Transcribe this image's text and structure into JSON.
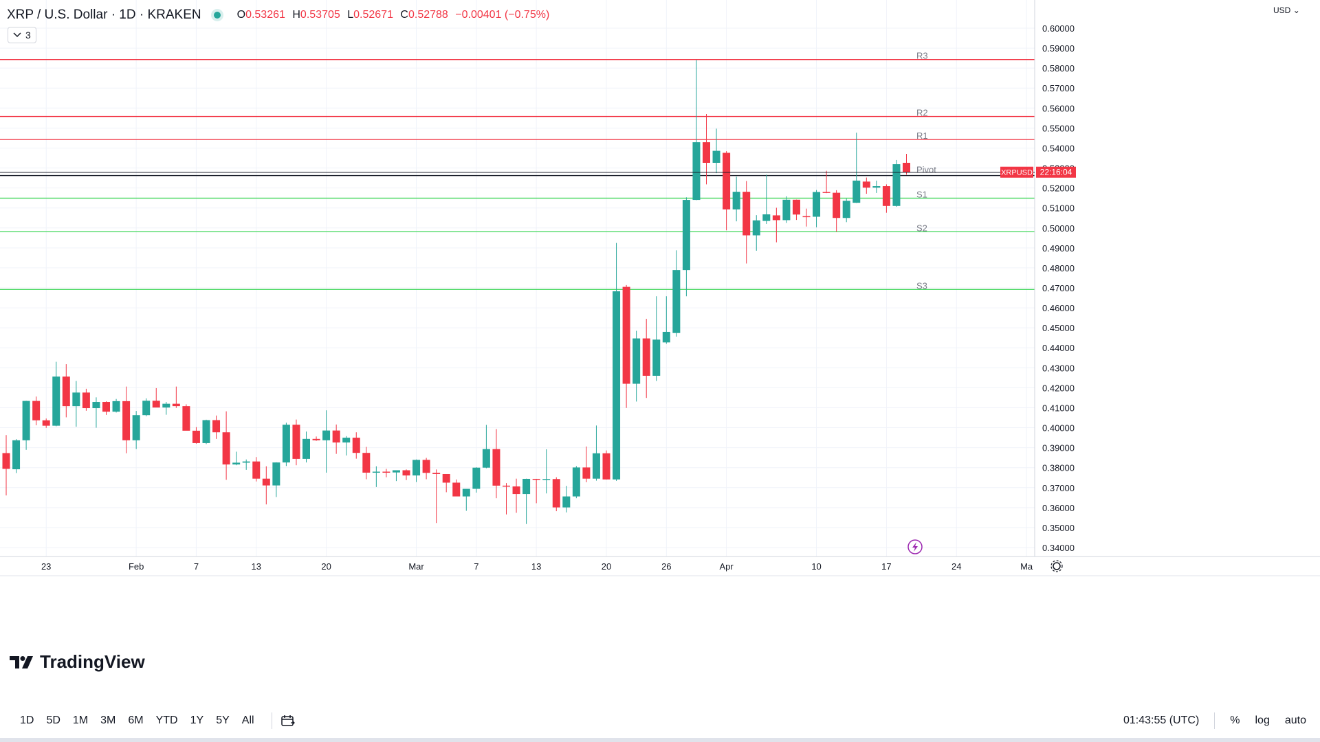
{
  "header": {
    "symbol": "XRP / U.S. Dollar · 1D · KRAKEN",
    "ohlc": {
      "o_label": "O",
      "o": "0.53261",
      "h_label": "H",
      "h": "0.53705",
      "l_label": "L",
      "l": "0.52671",
      "c_label": "C",
      "c": "0.52788",
      "change": "−0.00401 (−0.75%)"
    },
    "indicator_count": "3"
  },
  "price_scale": {
    "currency": "USD",
    "ticks": [
      "0.60000",
      "0.59000",
      "0.58000",
      "0.57000",
      "0.56000",
      "0.55000",
      "0.54000",
      "0.53000",
      "0.52000",
      "0.51000",
      "0.50000",
      "0.49000",
      "0.48000",
      "0.47000",
      "0.46000",
      "0.45000",
      "0.44000",
      "0.43000",
      "0.42000",
      "0.41000",
      "0.40000",
      "0.39000",
      "0.38000",
      "0.37000",
      "0.36000",
      "0.35000",
      "0.34000"
    ],
    "last_price_label": "XRPUSD",
    "countdown": "22:16:04"
  },
  "time_axis": {
    "labels": [
      "23",
      "Feb",
      "7",
      "13",
      "20",
      "Mar",
      "7",
      "13",
      "20",
      "26",
      "Apr",
      "10",
      "17",
      "24",
      "Ma"
    ]
  },
  "bottom_bar": {
    "ranges": [
      "1D",
      "5D",
      "1M",
      "3M",
      "6M",
      "YTD",
      "1Y",
      "5Y",
      "All"
    ],
    "clock": "01:43:55 (UTC)",
    "percent": "%",
    "log": "log",
    "auto": "auto"
  },
  "branding": {
    "logo_text": "TradingView"
  },
  "colors": {
    "up": "#26a69a",
    "down": "#f23645",
    "resistance": "#f23645",
    "support": "#4cd964",
    "current": "#131722"
  },
  "chart_data": {
    "type": "candlestick",
    "title": "XRP / U.S. Dollar · 1D · KRAKEN",
    "ylim": [
      0.336,
      0.607
    ],
    "y_scale": "linear",
    "grid": true,
    "levels": [
      {
        "name": "R3",
        "value": 0.5843
      },
      {
        "name": "R2",
        "value": 0.5558
      },
      {
        "name": "R1",
        "value": 0.5443
      },
      {
        "name": "Pivot",
        "value": 0.5262
      },
      {
        "name": "S1",
        "value": 0.5149
      },
      {
        "name": "S2",
        "value": 0.4981
      },
      {
        "name": "S3",
        "value": 0.4692
      }
    ],
    "last_price": 0.52788,
    "candles": [
      {
        "date": "2023-01-19",
        "o": 0.3873,
        "h": 0.3963,
        "l": 0.3661,
        "c": 0.3794
      },
      {
        "date": "2023-01-20",
        "o": 0.3792,
        "h": 0.3943,
        "l": 0.3773,
        "c": 0.3937
      },
      {
        "date": "2023-01-21",
        "o": 0.3937,
        "h": 0.4135,
        "l": 0.3889,
        "c": 0.4134
      },
      {
        "date": "2023-01-22",
        "o": 0.4134,
        "h": 0.4156,
        "l": 0.4012,
        "c": 0.4037
      },
      {
        "date": "2023-01-23",
        "o": 0.4037,
        "h": 0.4046,
        "l": 0.3999,
        "c": 0.401
      },
      {
        "date": "2023-01-24",
        "o": 0.401,
        "h": 0.433,
        "l": 0.4007,
        "c": 0.4256
      },
      {
        "date": "2023-01-25",
        "o": 0.4256,
        "h": 0.4318,
        "l": 0.4052,
        "c": 0.4108
      },
      {
        "date": "2023-01-26",
        "o": 0.4108,
        "h": 0.4234,
        "l": 0.4005,
        "c": 0.4176
      },
      {
        "date": "2023-01-27",
        "o": 0.4176,
        "h": 0.4195,
        "l": 0.4085,
        "c": 0.4098
      },
      {
        "date": "2023-01-28",
        "o": 0.4098,
        "h": 0.4152,
        "l": 0.4,
        "c": 0.4129
      },
      {
        "date": "2023-01-29",
        "o": 0.4129,
        "h": 0.4132,
        "l": 0.4064,
        "c": 0.408
      },
      {
        "date": "2023-01-30",
        "o": 0.408,
        "h": 0.4144,
        "l": 0.4076,
        "c": 0.4133
      },
      {
        "date": "2023-01-31",
        "o": 0.4133,
        "h": 0.4206,
        "l": 0.3872,
        "c": 0.3937
      },
      {
        "date": "2023-02-01",
        "o": 0.3937,
        "h": 0.4084,
        "l": 0.3893,
        "c": 0.4063
      },
      {
        "date": "2023-02-02",
        "o": 0.4063,
        "h": 0.4147,
        "l": 0.4057,
        "c": 0.4135
      },
      {
        "date": "2023-02-03",
        "o": 0.4135,
        "h": 0.4198,
        "l": 0.4107,
        "c": 0.4101
      },
      {
        "date": "2023-02-04",
        "o": 0.4101,
        "h": 0.4129,
        "l": 0.4065,
        "c": 0.412
      },
      {
        "date": "2023-02-05",
        "o": 0.412,
        "h": 0.4206,
        "l": 0.4099,
        "c": 0.4108
      },
      {
        "date": "2023-02-06",
        "o": 0.4108,
        "h": 0.4117,
        "l": 0.3988,
        "c": 0.3985
      },
      {
        "date": "2023-02-07",
        "o": 0.3985,
        "h": 0.4003,
        "l": 0.392,
        "c": 0.3923
      },
      {
        "date": "2023-02-08",
        "o": 0.3923,
        "h": 0.404,
        "l": 0.3918,
        "c": 0.4038
      },
      {
        "date": "2023-02-09",
        "o": 0.4038,
        "h": 0.4061,
        "l": 0.3944,
        "c": 0.3977
      },
      {
        "date": "2023-02-10",
        "o": 0.3977,
        "h": 0.4082,
        "l": 0.3739,
        "c": 0.3816
      },
      {
        "date": "2023-02-11",
        "o": 0.3816,
        "h": 0.388,
        "l": 0.3812,
        "c": 0.3825
      },
      {
        "date": "2023-02-12",
        "o": 0.3825,
        "h": 0.3841,
        "l": 0.3789,
        "c": 0.3831
      },
      {
        "date": "2023-02-13",
        "o": 0.3831,
        "h": 0.3853,
        "l": 0.3731,
        "c": 0.3745
      },
      {
        "date": "2023-02-14",
        "o": 0.3745,
        "h": 0.3807,
        "l": 0.3616,
        "c": 0.3711
      },
      {
        "date": "2023-02-15",
        "o": 0.3711,
        "h": 0.3827,
        "l": 0.3653,
        "c": 0.3826
      },
      {
        "date": "2023-02-16",
        "o": 0.3826,
        "h": 0.4025,
        "l": 0.3808,
        "c": 0.4015
      },
      {
        "date": "2023-02-17",
        "o": 0.4015,
        "h": 0.4041,
        "l": 0.3812,
        "c": 0.3844
      },
      {
        "date": "2023-02-18",
        "o": 0.3844,
        "h": 0.3981,
        "l": 0.3826,
        "c": 0.3944
      },
      {
        "date": "2023-02-19",
        "o": 0.3944,
        "h": 0.3956,
        "l": 0.3934,
        "c": 0.3937
      },
      {
        "date": "2023-02-20",
        "o": 0.3937,
        "h": 0.4087,
        "l": 0.3775,
        "c": 0.3986
      },
      {
        "date": "2023-02-21",
        "o": 0.3986,
        "h": 0.4016,
        "l": 0.3869,
        "c": 0.3926
      },
      {
        "date": "2023-02-22",
        "o": 0.3926,
        "h": 0.3958,
        "l": 0.3861,
        "c": 0.395
      },
      {
        "date": "2023-02-23",
        "o": 0.395,
        "h": 0.3977,
        "l": 0.3845,
        "c": 0.3874
      },
      {
        "date": "2023-02-24",
        "o": 0.3874,
        "h": 0.3904,
        "l": 0.3742,
        "c": 0.3775
      },
      {
        "date": "2023-02-25",
        "o": 0.3775,
        "h": 0.3807,
        "l": 0.3703,
        "c": 0.378
      },
      {
        "date": "2023-02-26",
        "o": 0.378,
        "h": 0.3794,
        "l": 0.3752,
        "c": 0.3776
      },
      {
        "date": "2023-02-27",
        "o": 0.3776,
        "h": 0.3784,
        "l": 0.3733,
        "c": 0.3787
      },
      {
        "date": "2023-02-28",
        "o": 0.3787,
        "h": 0.3791,
        "l": 0.3738,
        "c": 0.3761
      },
      {
        "date": "2023-03-01",
        "o": 0.3761,
        "h": 0.3841,
        "l": 0.3728,
        "c": 0.3839
      },
      {
        "date": "2023-03-02",
        "o": 0.3839,
        "h": 0.3849,
        "l": 0.3742,
        "c": 0.3774
      },
      {
        "date": "2023-03-03",
        "o": 0.3774,
        "h": 0.3791,
        "l": 0.3523,
        "c": 0.3768
      },
      {
        "date": "2023-03-04",
        "o": 0.3768,
        "h": 0.3768,
        "l": 0.3677,
        "c": 0.3725
      },
      {
        "date": "2023-03-05",
        "o": 0.3725,
        "h": 0.3741,
        "l": 0.368,
        "c": 0.3656
      },
      {
        "date": "2023-03-06",
        "o": 0.3656,
        "h": 0.3694,
        "l": 0.3584,
        "c": 0.3694
      },
      {
        "date": "2023-03-07",
        "o": 0.3694,
        "h": 0.3802,
        "l": 0.3675,
        "c": 0.38
      },
      {
        "date": "2023-03-08",
        "o": 0.38,
        "h": 0.4014,
        "l": 0.3797,
        "c": 0.3893
      },
      {
        "date": "2023-03-09",
        "o": 0.3893,
        "h": 0.3993,
        "l": 0.3647,
        "c": 0.371
      },
      {
        "date": "2023-03-10",
        "o": 0.371,
        "h": 0.3723,
        "l": 0.3566,
        "c": 0.3706
      },
      {
        "date": "2023-03-11",
        "o": 0.3706,
        "h": 0.3745,
        "l": 0.3574,
        "c": 0.3668
      },
      {
        "date": "2023-03-12",
        "o": 0.3668,
        "h": 0.3745,
        "l": 0.3518,
        "c": 0.3744
      },
      {
        "date": "2023-03-13",
        "o": 0.3744,
        "h": 0.3744,
        "l": 0.3622,
        "c": 0.3741
      },
      {
        "date": "2023-03-14",
        "o": 0.3741,
        "h": 0.3892,
        "l": 0.3671,
        "c": 0.3743
      },
      {
        "date": "2023-03-15",
        "o": 0.3743,
        "h": 0.3752,
        "l": 0.3582,
        "c": 0.3601
      },
      {
        "date": "2023-03-16",
        "o": 0.3601,
        "h": 0.3709,
        "l": 0.3576,
        "c": 0.3656
      },
      {
        "date": "2023-03-17",
        "o": 0.3656,
        "h": 0.3808,
        "l": 0.3647,
        "c": 0.3801
      },
      {
        "date": "2023-03-18",
        "o": 0.3801,
        "h": 0.3906,
        "l": 0.3727,
        "c": 0.3745
      },
      {
        "date": "2023-03-19",
        "o": 0.3745,
        "h": 0.4011,
        "l": 0.3735,
        "c": 0.3872
      },
      {
        "date": "2023-03-20",
        "o": 0.3872,
        "h": 0.3886,
        "l": 0.374,
        "c": 0.3741
      },
      {
        "date": "2023-03-21",
        "o": 0.3741,
        "h": 0.4925,
        "l": 0.3734,
        "c": 0.4683
      },
      {
        "date": "2023-03-22",
        "o": 0.4705,
        "h": 0.4714,
        "l": 0.4099,
        "c": 0.422
      },
      {
        "date": "2023-03-23",
        "o": 0.422,
        "h": 0.4485,
        "l": 0.4131,
        "c": 0.4447
      },
      {
        "date": "2023-03-24",
        "o": 0.4447,
        "h": 0.4545,
        "l": 0.4149,
        "c": 0.426
      },
      {
        "date": "2023-03-25",
        "o": 0.426,
        "h": 0.4658,
        "l": 0.4234,
        "c": 0.4441
      },
      {
        "date": "2023-03-26",
        "o": 0.4427,
        "h": 0.4658,
        "l": 0.442,
        "c": 0.448
      },
      {
        "date": "2023-03-27",
        "o": 0.4474,
        "h": 0.4888,
        "l": 0.4456,
        "c": 0.4789
      },
      {
        "date": "2023-03-28",
        "o": 0.4789,
        "h": 0.5153,
        "l": 0.4658,
        "c": 0.514
      },
      {
        "date": "2023-03-29",
        "o": 0.514,
        "h": 0.5841,
        "l": 0.5139,
        "c": 0.5429
      },
      {
        "date": "2023-03-30",
        "o": 0.5429,
        "h": 0.557,
        "l": 0.5218,
        "c": 0.5326
      },
      {
        "date": "2023-03-31",
        "o": 0.5326,
        "h": 0.5497,
        "l": 0.5274,
        "c": 0.5386
      },
      {
        "date": "2023-04-01",
        "o": 0.5376,
        "h": 0.5384,
        "l": 0.4988,
        "c": 0.5093
      },
      {
        "date": "2023-04-02",
        "o": 0.5093,
        "h": 0.5257,
        "l": 0.5033,
        "c": 0.5181
      },
      {
        "date": "2023-04-03",
        "o": 0.5181,
        "h": 0.5235,
        "l": 0.4822,
        "c": 0.4963
      },
      {
        "date": "2023-04-04",
        "o": 0.4963,
        "h": 0.5064,
        "l": 0.4886,
        "c": 0.5038
      },
      {
        "date": "2023-04-05",
        "o": 0.5035,
        "h": 0.5267,
        "l": 0.502,
        "c": 0.5068
      },
      {
        "date": "2023-04-06",
        "o": 0.5063,
        "h": 0.5101,
        "l": 0.4928,
        "c": 0.5039
      },
      {
        "date": "2023-04-07",
        "o": 0.5039,
        "h": 0.5159,
        "l": 0.5025,
        "c": 0.5141
      },
      {
        "date": "2023-04-08",
        "o": 0.5141,
        "h": 0.5142,
        "l": 0.504,
        "c": 0.5067
      },
      {
        "date": "2023-04-09",
        "o": 0.5059,
        "h": 0.5097,
        "l": 0.5007,
        "c": 0.5056
      },
      {
        "date": "2023-04-10",
        "o": 0.5056,
        "h": 0.519,
        "l": 0.5003,
        "c": 0.518
      },
      {
        "date": "2023-04-11",
        "o": 0.518,
        "h": 0.5286,
        "l": 0.5174,
        "c": 0.5176
      },
      {
        "date": "2023-04-12",
        "o": 0.5176,
        "h": 0.5189,
        "l": 0.4981,
        "c": 0.505
      },
      {
        "date": "2023-04-13",
        "o": 0.505,
        "h": 0.5147,
        "l": 0.5029,
        "c": 0.5136
      },
      {
        "date": "2023-04-14",
        "o": 0.5126,
        "h": 0.5477,
        "l": 0.5125,
        "c": 0.5237
      },
      {
        "date": "2023-04-15",
        "o": 0.5232,
        "h": 0.5252,
        "l": 0.5171,
        "c": 0.5202
      },
      {
        "date": "2023-04-16",
        "o": 0.5202,
        "h": 0.5237,
        "l": 0.5175,
        "c": 0.5209
      },
      {
        "date": "2023-04-17",
        "o": 0.5209,
        "h": 0.5218,
        "l": 0.5076,
        "c": 0.511
      },
      {
        "date": "2023-04-18",
        "o": 0.511,
        "h": 0.534,
        "l": 0.5106,
        "c": 0.5319
      },
      {
        "date": "2023-04-19",
        "o": 0.53261,
        "h": 0.53705,
        "l": 0.52671,
        "c": 0.52788
      }
    ]
  }
}
